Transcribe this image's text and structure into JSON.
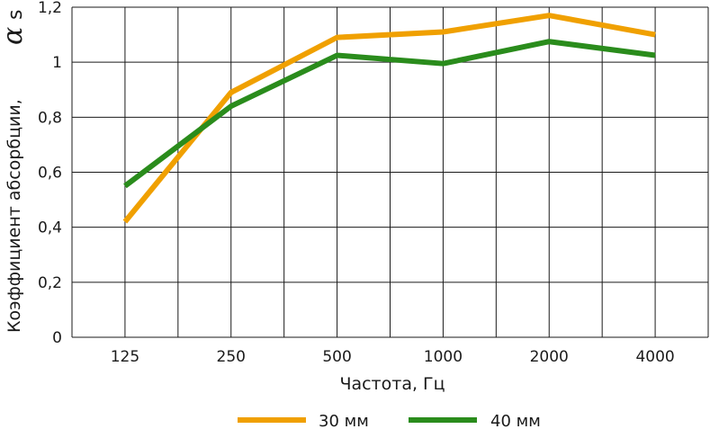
{
  "chart_data": {
    "type": "line",
    "categories": [
      "125",
      "250",
      "500",
      "1000",
      "2000",
      "4000"
    ],
    "series": [
      {
        "name": "30 мм",
        "values": [
          0.42,
          0.89,
          1.09,
          1.11,
          1.17,
          1.1
        ]
      },
      {
        "name": "40 мм",
        "values": [
          0.55,
          0.84,
          1.025,
          0.995,
          1.075,
          1.025
        ]
      }
    ],
    "xlabel": "Частота, Гц",
    "ylabel": "Коэффициент абсорбции,",
    "ylabel_symbol": "α",
    "ylabel_symbol_sub": "s",
    "ylim": [
      0,
      1.2
    ],
    "yticks": [
      "0",
      "0,2",
      "0,4",
      "0,6",
      "0,8",
      "1",
      "1,2"
    ],
    "ytick_values": [
      0,
      0.2,
      0.4,
      0.6,
      0.8,
      1.0,
      1.2
    ],
    "grid": true,
    "legend": "bottom",
    "colors": {
      "30 мм": "#f0a000",
      "40 мм": "#2a8c1c",
      "grid": "#1a1a1a"
    }
  }
}
